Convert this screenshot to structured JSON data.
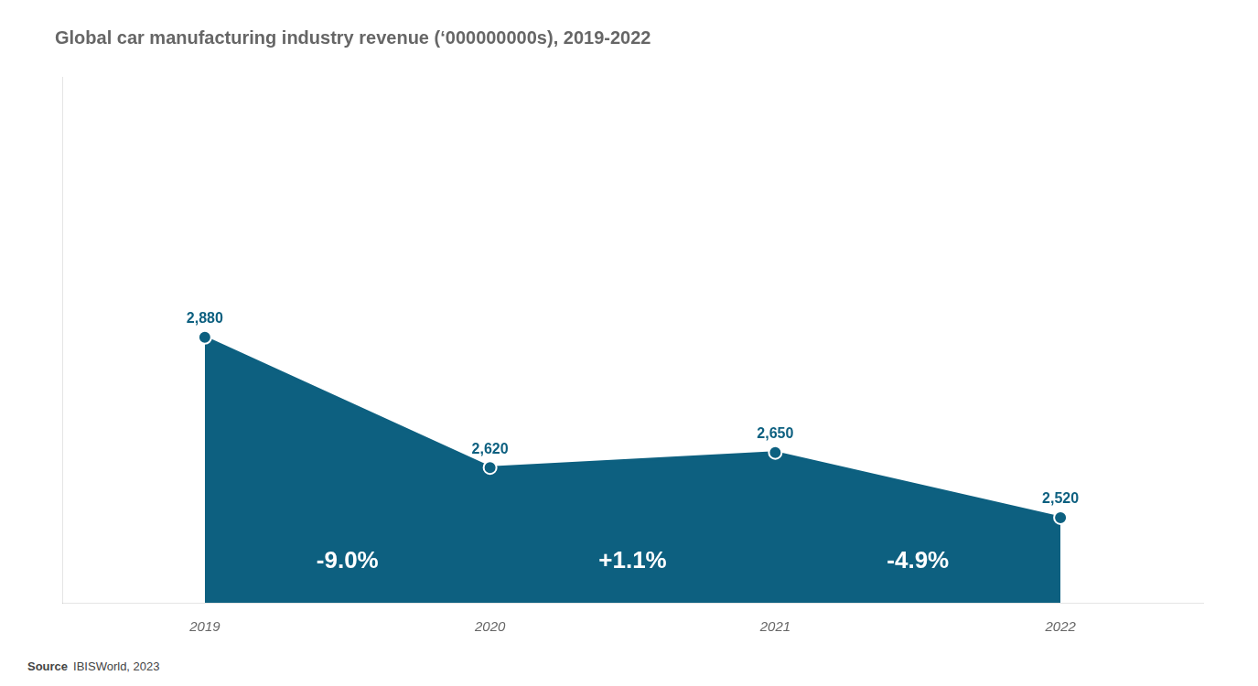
{
  "chart_data": {
    "type": "area",
    "title": "Global car manufacturing industry revenue (‘000000000s), 2019-2022",
    "categories": [
      "2019",
      "2020",
      "2021",
      "2022"
    ],
    "values": [
      2880,
      2620,
      2650,
      2520
    ],
    "value_labels": [
      "2,880",
      "2,620",
      "2,650",
      "2,520"
    ],
    "data_labels": true,
    "color": "#0d6080",
    "ylim": [
      2350,
      3400
    ],
    "tick_labels": "x",
    "grid": false,
    "annotations": [
      {
        "text": "-9.0%",
        "between": [
          "2019",
          "2020"
        ]
      },
      {
        "text": "+1.1%",
        "between": [
          "2020",
          "2021"
        ]
      },
      {
        "text": "-4.9%",
        "between": [
          "2021",
          "2022"
        ]
      }
    ],
    "source_label": "Source",
    "source_text": "IBISWorld, 2023"
  }
}
